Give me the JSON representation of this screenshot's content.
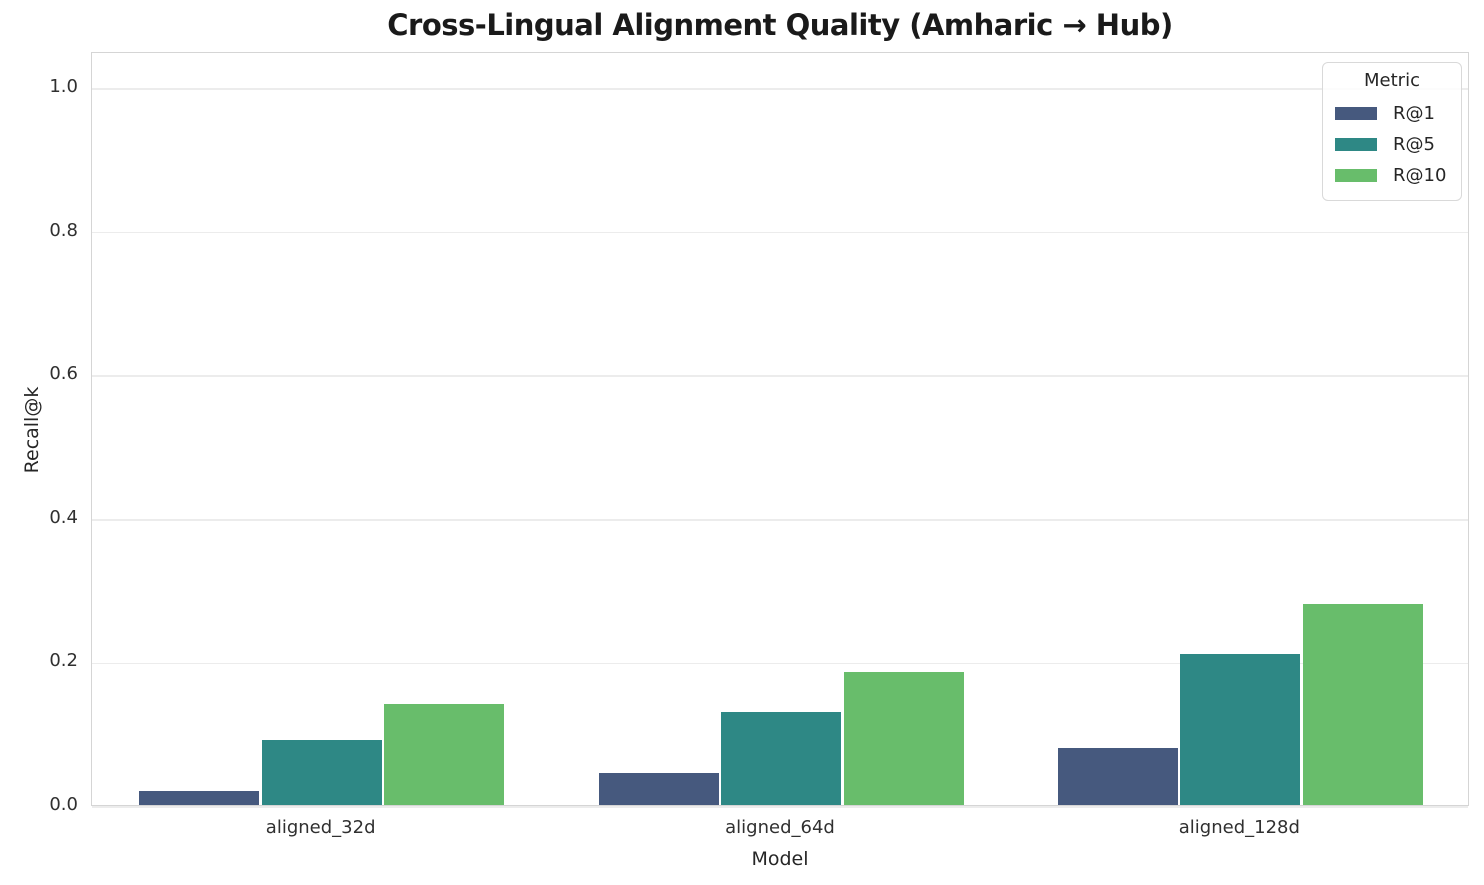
{
  "title": "Cross-Lingual Alignment Quality (Amharic → Hub)",
  "chart_data": {
    "type": "bar",
    "title": "Cross-Lingual Alignment Quality (Amharic → Hub)",
    "xlabel": "Model",
    "ylabel": "Recall@k",
    "categories": [
      "aligned_32d",
      "aligned_64d",
      "aligned_128d"
    ],
    "series": [
      {
        "name": "R@1",
        "color": "#46597e",
        "values": [
          0.02,
          0.045,
          0.08
        ]
      },
      {
        "name": "R@5",
        "color": "#2e8885",
        "values": [
          0.09,
          0.13,
          0.21
        ]
      },
      {
        "name": "R@10",
        "color": "#68bd6b",
        "values": [
          0.14,
          0.185,
          0.28
        ]
      }
    ],
    "ylim": [
      0,
      1.05
    ],
    "yticks": [
      0.0,
      0.2,
      0.4,
      0.6,
      0.8,
      1.0
    ],
    "ytick_labels": [
      "0.0",
      "0.2",
      "0.4",
      "0.6",
      "0.8",
      "1.0"
    ],
    "grid": true,
    "legend_title": "Metric",
    "legend_position": "upper right"
  },
  "colors": {
    "background": "#ffffff",
    "plot_border": "#d5d5d5",
    "gridline": "#ececec",
    "title_text": "#1a1a1a",
    "tick_text": "#303030"
  }
}
